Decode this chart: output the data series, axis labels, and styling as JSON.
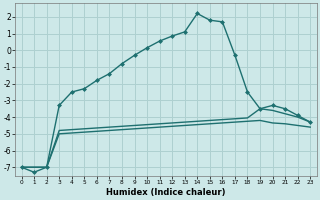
{
  "xlabel": "Humidex (Indice chaleur)",
  "bg_color": "#cde8e8",
  "grid_color": "#aed0d0",
  "line_color": "#1e7070",
  "xlim": [
    -0.5,
    23.5
  ],
  "ylim": [
    -7.5,
    2.8
  ],
  "xticks": [
    0,
    1,
    2,
    3,
    4,
    5,
    6,
    7,
    8,
    9,
    10,
    11,
    12,
    13,
    14,
    15,
    16,
    17,
    18,
    19,
    20,
    21,
    22,
    23
  ],
  "yticks": [
    -7,
    -6,
    -5,
    -4,
    -3,
    -2,
    -1,
    0,
    1,
    2
  ],
  "line1_x": [
    0,
    1,
    2,
    3,
    4,
    5,
    6,
    7,
    8,
    9,
    10,
    11,
    12,
    13,
    14,
    15,
    16,
    17,
    18,
    19,
    20,
    21,
    22,
    23
  ],
  "line1_y": [
    -7.0,
    -7.3,
    -7.0,
    -3.3,
    -2.5,
    -2.3,
    -1.8,
    -1.4,
    -0.8,
    -0.3,
    0.15,
    0.55,
    0.85,
    1.1,
    2.2,
    1.8,
    1.7,
    -0.3,
    -2.5,
    -3.5,
    -3.3,
    -3.5,
    -3.9,
    -4.3
  ],
  "line2_x": [
    0,
    1,
    2,
    3,
    4,
    5,
    6,
    7,
    8,
    9,
    10,
    11,
    12,
    13,
    14,
    15,
    16,
    17,
    18,
    19,
    20,
    21,
    22,
    23
  ],
  "line2_y": [
    -7.0,
    -7.0,
    -7.0,
    -4.8,
    -4.75,
    -4.7,
    -4.65,
    -4.6,
    -4.55,
    -4.5,
    -4.45,
    -4.4,
    -4.35,
    -4.3,
    -4.25,
    -4.2,
    -4.15,
    -4.1,
    -4.05,
    -3.5,
    -3.6,
    -3.8,
    -4.0,
    -4.3
  ],
  "line3_x": [
    0,
    1,
    2,
    3,
    4,
    5,
    6,
    7,
    8,
    9,
    10,
    11,
    12,
    13,
    14,
    15,
    16,
    17,
    18,
    19,
    20,
    21,
    22,
    23
  ],
  "line3_y": [
    -7.0,
    -7.0,
    -7.0,
    -5.0,
    -4.95,
    -4.9,
    -4.85,
    -4.8,
    -4.75,
    -4.7,
    -4.65,
    -4.6,
    -4.55,
    -4.5,
    -4.45,
    -4.4,
    -4.35,
    -4.3,
    -4.25,
    -4.2,
    -4.35,
    -4.4,
    -4.5,
    -4.6
  ]
}
